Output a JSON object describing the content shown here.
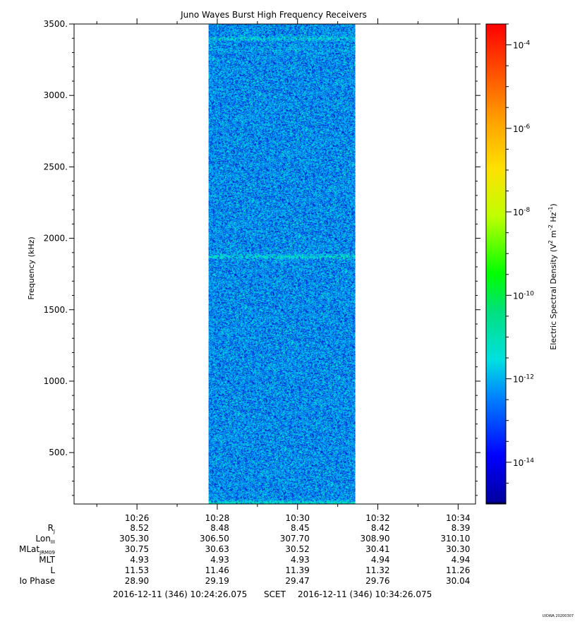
{
  "chart_data": {
    "type": "heatmap",
    "title": "Juno Waves Burst High Frequency Receivers",
    "ylabel": "Frequency (kHz)",
    "ylim": [
      140,
      3500
    ],
    "yticks": [
      "500.",
      "1000.",
      "1500.",
      "2000.",
      "2500.",
      "3000.",
      "3500."
    ],
    "ytick_values": [
      500,
      1000,
      1500,
      2000,
      2500,
      3000,
      3500
    ],
    "x_time_range": [
      "10:24:26.075",
      "10:34:26.075"
    ],
    "xticks": [
      "10:26",
      "10:28",
      "10:30",
      "10:32",
      "10:34"
    ],
    "xtick_minutes": [
      1.5667,
      3.5667,
      5.5667,
      7.5667,
      9.5667
    ],
    "data_time_range_minutes": [
      3.35,
      7.0
    ],
    "background_level": -12.0,
    "bright_bands": [
      {
        "freq_khz": 3400,
        "level": -11.7
      },
      {
        "freq_khz": 3320,
        "level": -11.9
      },
      {
        "freq_khz": 1875,
        "level": -11.6
      },
      {
        "freq_khz": 150,
        "level": -11.5
      }
    ],
    "colorbar": {
      "label": "Electric Spectral Density",
      "unit_text": "(V",
      "scale": "log",
      "range_exponent": [
        -15,
        -3.5
      ],
      "tick_base": "10",
      "tick_exponents": [
        "-4",
        "-6",
        "-8",
        "-10",
        "-12",
        "-14"
      ],
      "tick_values": [
        -4,
        -6,
        -8,
        -10,
        -12,
        -14
      ]
    },
    "ephemeris": {
      "rows": [
        {
          "label": "R",
          "sub": "J",
          "values": [
            "8.52",
            "8.48",
            "8.45",
            "8.42",
            "8.39"
          ]
        },
        {
          "label": "Lon",
          "sub": "III",
          "values": [
            "305.30",
            "306.50",
            "307.70",
            "308.90",
            "310.10"
          ]
        },
        {
          "label": "MLat",
          "sub": "JRM09",
          "values": [
            "30.75",
            "30.63",
            "30.52",
            "30.41",
            "30.30"
          ]
        },
        {
          "label": "MLT",
          "sub": "",
          "values": [
            "4.93",
            "4.93",
            "4.93",
            "4.94",
            "4.94"
          ]
        },
        {
          "label": "L",
          "sub": "",
          "values": [
            "11.53",
            "11.46",
            "11.39",
            "11.32",
            "11.26"
          ]
        },
        {
          "label": "Io Phase",
          "sub": "",
          "values": [
            "28.90",
            "29.19",
            "29.47",
            "29.76",
            "30.04"
          ]
        }
      ]
    },
    "time_footer": {
      "start": "2016-12-11 (346) 10:24:26.075",
      "label": "SCET",
      "end": "2016-12-11 (346) 10:34:26.075"
    }
  },
  "watermark": "UIOWA 20200307"
}
